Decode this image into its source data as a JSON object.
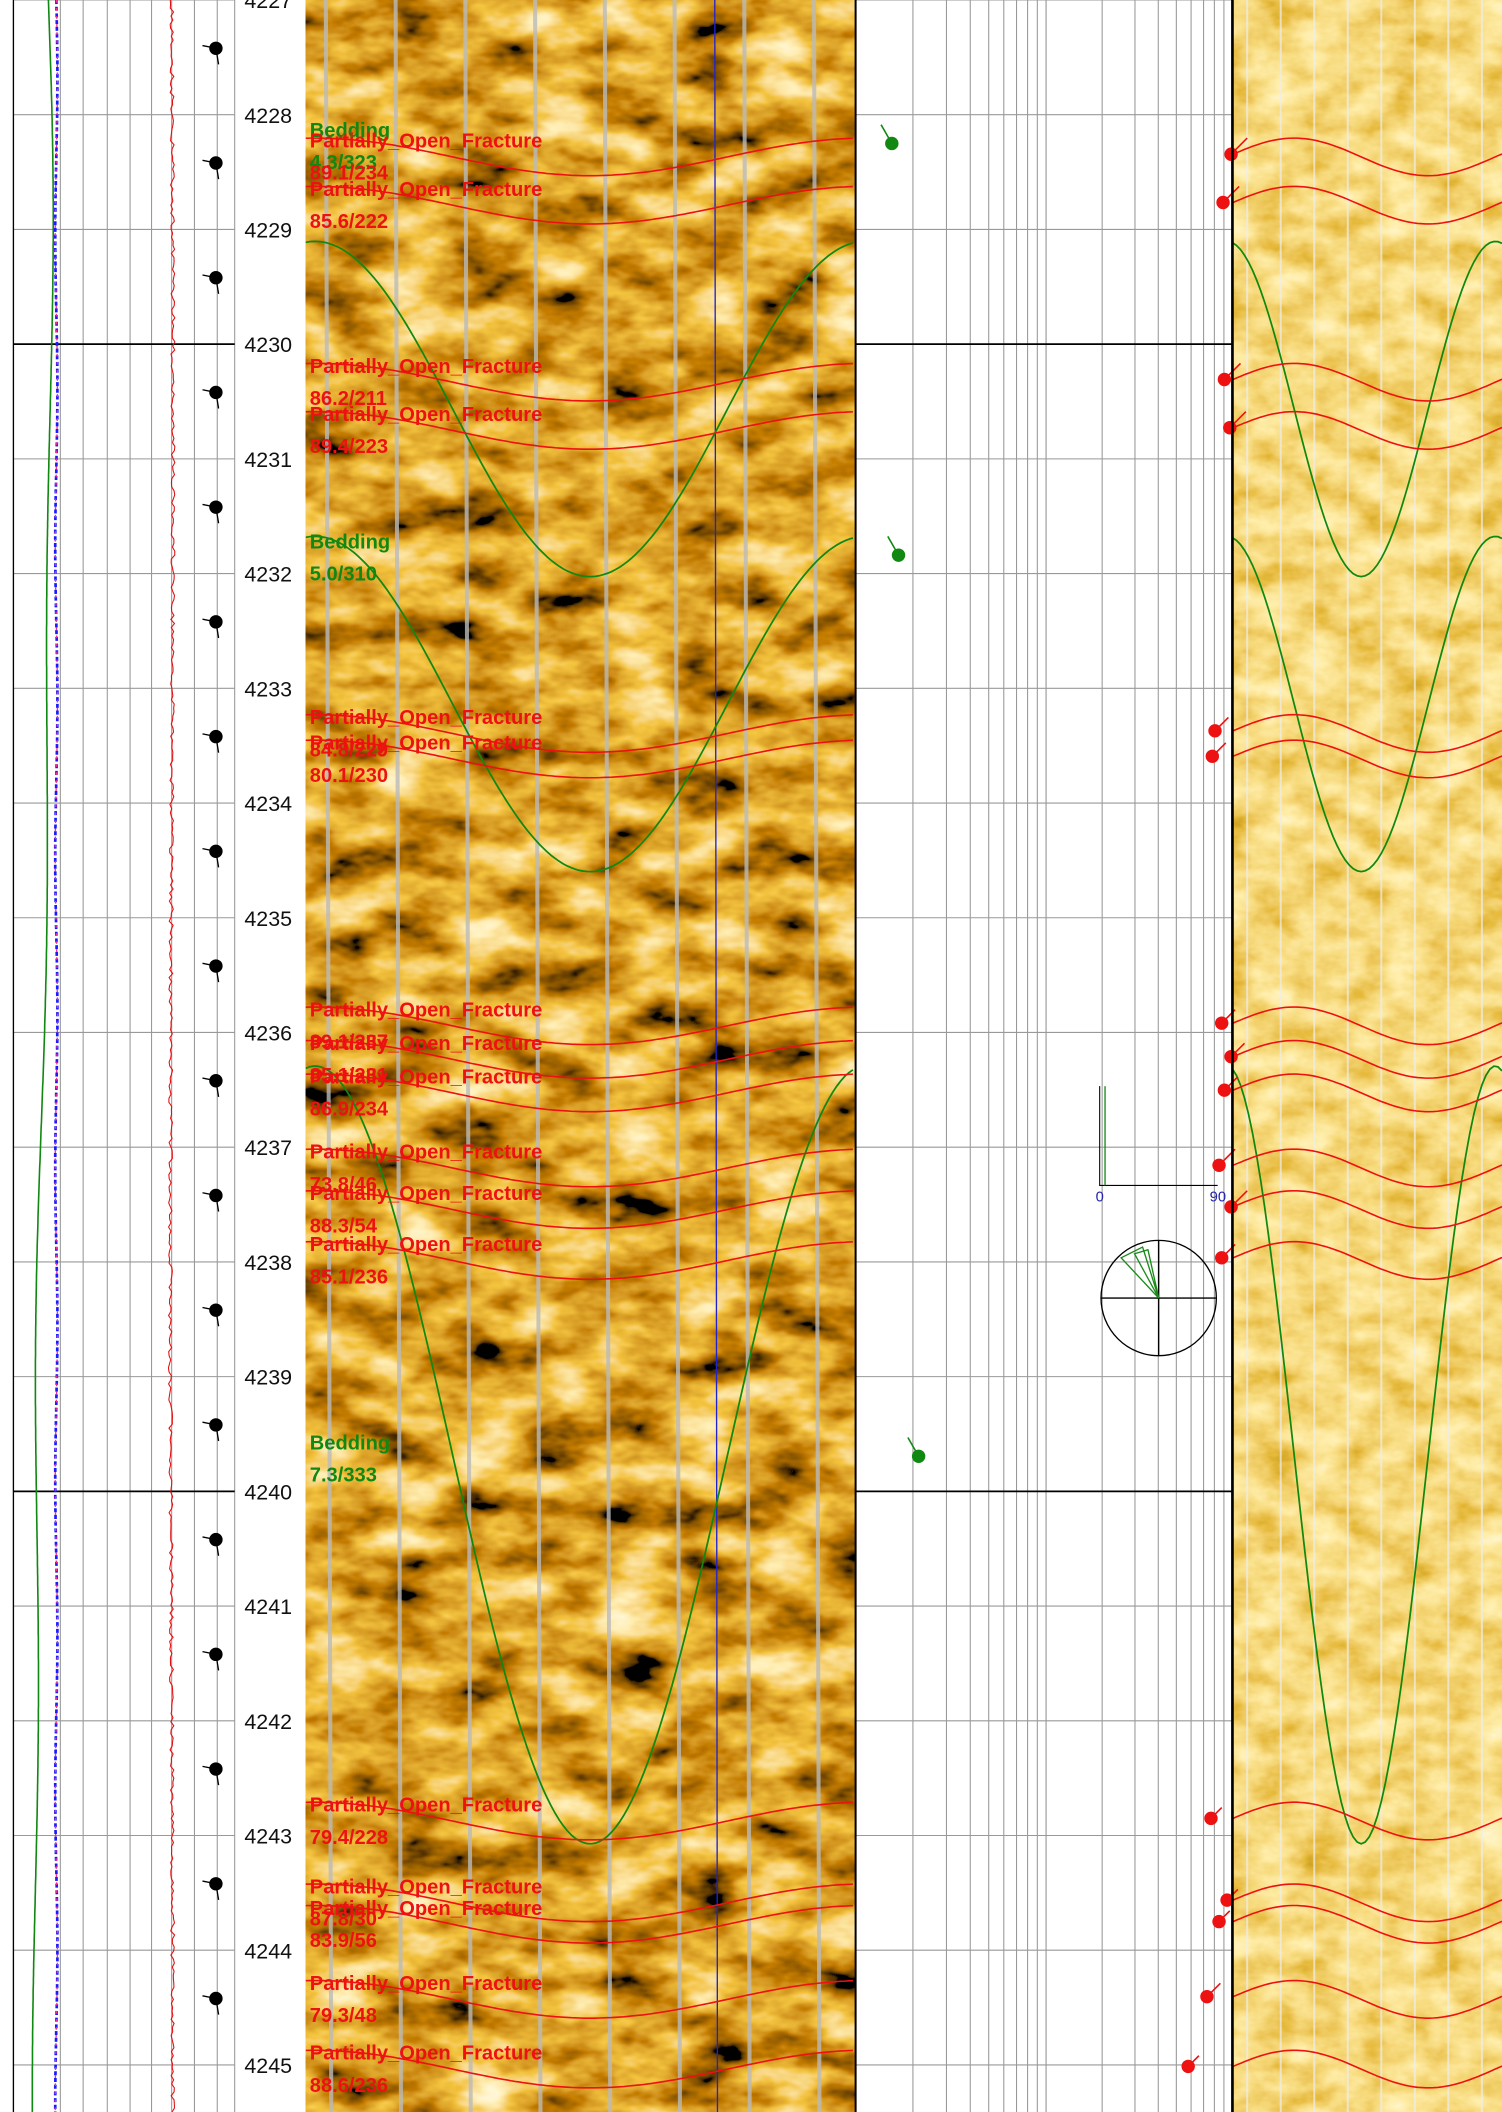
{
  "depth_track": {
    "ticks": [
      "4227",
      "4228",
      "4229",
      "4230",
      "4231",
      "4232",
      "4233",
      "4234",
      "4235",
      "4236",
      "4237",
      "4238",
      "4239",
      "4240",
      "4241",
      "4242",
      "4243",
      "4244",
      "4245"
    ]
  },
  "picks": [
    {
      "type": "Bedding",
      "orientation": "4.3/323"
    },
    {
      "type": "Partially_Open_Fracture",
      "orientation": "89.1/234"
    },
    {
      "type": "Partially_Open_Fracture",
      "orientation": "85.6/222"
    },
    {
      "type": "Partially_Open_Fracture",
      "orientation": "86.2/211"
    },
    {
      "type": "Partially_Open_Fracture",
      "orientation": "89.4/223"
    },
    {
      "type": "Bedding",
      "orientation": "5.0/310"
    },
    {
      "type": "Partially_Open_Fracture",
      "orientation": "84.8/229"
    },
    {
      "type": "Partially_Open_Fracture",
      "orientation": "80.1/230"
    },
    {
      "type": "Partially_Open_Fracture",
      "orientation": "89.1/237"
    },
    {
      "type": "Partially_Open_Fracture",
      "orientation": "85.1/231"
    },
    {
      "type": "Partially_Open_Fracture",
      "orientation": "86.9/234"
    },
    {
      "type": "Partially_Open_Fracture",
      "orientation": "73.8/46"
    },
    {
      "type": "Partially_Open_Fracture",
      "orientation": "88.3/54"
    },
    {
      "type": "Partially_Open_Fracture",
      "orientation": "85.1/236"
    },
    {
      "type": "Bedding",
      "orientation": "7.3/333"
    },
    {
      "type": "Partially_Open_Fracture",
      "orientation": "79.4/228"
    },
    {
      "type": "Partially_Open_Fracture",
      "orientation": "87.8/30"
    },
    {
      "type": "Partially_Open_Fracture",
      "orientation": "83.9/56"
    },
    {
      "type": "Partially_Open_Fracture",
      "orientation": "79.3/48"
    },
    {
      "type": "Partially_Open_Fracture",
      "orientation": "88.6/236"
    }
  ],
  "stereonet": {
    "min_label": "0",
    "max_label": "90"
  }
}
